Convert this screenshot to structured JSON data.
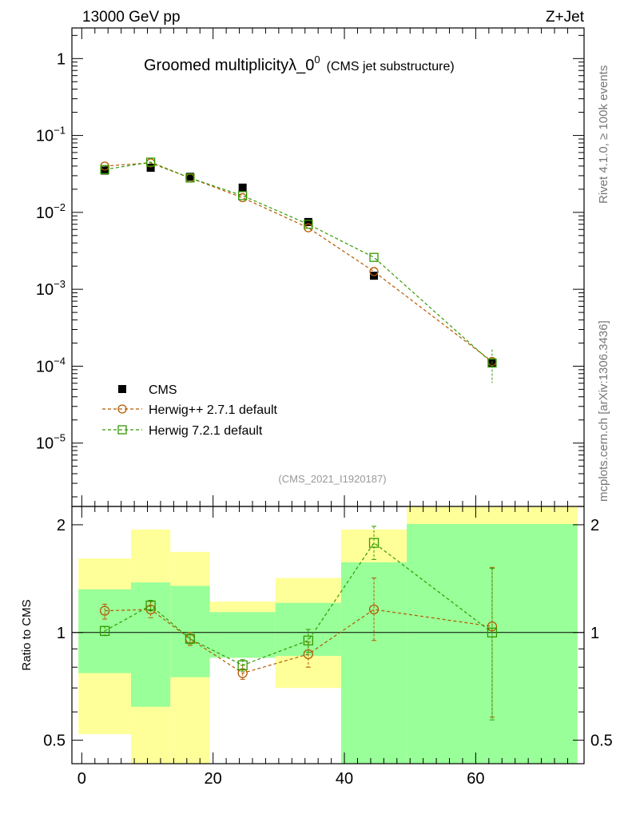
{
  "header": {
    "left": "13000 GeV pp",
    "right": "Z+Jet"
  },
  "title": {
    "main": "Groomed multiplicityλ_0",
    "sup": "0",
    "sub": "(CMS jet substructure)"
  },
  "side_labels": {
    "rivet": "Rivet 4.1.0, ≥ 100k events",
    "mcplots": "mcplots.cern.ch [arXiv:1306.3436]"
  },
  "analysis_id": "(CMS_2021_I1920187)",
  "colors": {
    "data": "#000000",
    "herwigpp": "#b35900",
    "herwig7": "#339900",
    "band_green": "#99ff99",
    "band_yellow": "#ffff99"
  },
  "chart_data": [
    {
      "type": "scatter",
      "yscale": "log",
      "ylim": [
        1.5e-06,
        2.5
      ],
      "xlim": [
        -1.5,
        76.5
      ],
      "yticks": [
        {
          "value": 1,
          "base": "1",
          "exp": ""
        },
        {
          "value": 0.1,
          "base": "10",
          "exp": "−1"
        },
        {
          "value": 0.01,
          "base": "10",
          "exp": "−2"
        },
        {
          "value": 0.001,
          "base": "10",
          "exp": "−3"
        },
        {
          "value": 0.0001,
          "base": "10",
          "exp": "−4"
        },
        {
          "value": 1e-05,
          "base": "10",
          "exp": "−5"
        }
      ],
      "legend_position": "bottom-left",
      "series": [
        {
          "name": "CMS",
          "marker": "filled-square",
          "points": [
            {
              "x": 3.5,
              "y": 0.035
            },
            {
              "x": 10.5,
              "y": 0.038
            },
            {
              "x": 16.5,
              "y": 0.029
            },
            {
              "x": 24.5,
              "y": 0.021
            },
            {
              "x": 34.5,
              "y": 0.0075
            },
            {
              "x": 44.5,
              "y": 0.0015
            },
            {
              "x": 62.5,
              "y": 0.00011
            }
          ]
        },
        {
          "name": "Herwig++ 2.7.1 default",
          "marker": "open-circle",
          "points": [
            {
              "x": 3.5,
              "y": 0.04
            },
            {
              "x": 10.5,
              "y": 0.044
            },
            {
              "x": 16.5,
              "y": 0.028
            },
            {
              "x": 24.5,
              "y": 0.0155
            },
            {
              "x": 34.5,
              "y": 0.0063
            },
            {
              "x": 44.5,
              "y": 0.0017
            },
            {
              "x": 62.5,
              "y": 0.000115
            }
          ]
        },
        {
          "name": "Herwig 7.2.1 default",
          "marker": "open-square",
          "points": [
            {
              "x": 3.5,
              "y": 0.036
            },
            {
              "x": 10.5,
              "y": 0.045
            },
            {
              "x": 16.5,
              "y": 0.028
            },
            {
              "x": 24.5,
              "y": 0.0165
            },
            {
              "x": 34.5,
              "y": 0.007
            },
            {
              "x": 44.5,
              "y": 0.0026
            },
            {
              "x": 62.5,
              "y": 0.00011
            }
          ]
        }
      ]
    },
    {
      "type": "scatter",
      "ylabel": "Ratio to CMS",
      "yscale": "log",
      "ylim": [
        0.43,
        2.25
      ],
      "xlim": [
        -1.5,
        76.5
      ],
      "xticks": [
        0,
        20,
        40,
        60
      ],
      "yticks": [
        {
          "value": 0.5,
          "label": "0.5"
        },
        {
          "value": 1,
          "label": "1"
        },
        {
          "value": 2,
          "label": "2"
        }
      ],
      "bands": [
        {
          "x0": -0.5,
          "x1": 7.5,
          "green": [
            0.77,
            1.32
          ],
          "yellow": [
            0.52,
            1.61
          ]
        },
        {
          "x0": 7.5,
          "x1": 13.5,
          "green": [
            0.62,
            1.38
          ],
          "yellow": [
            0.43,
            1.94
          ]
        },
        {
          "x0": 13.5,
          "x1": 19.5,
          "green": [
            0.75,
            1.35
          ],
          "yellow": [
            0.43,
            1.68
          ]
        },
        {
          "x0": 19.5,
          "x1": 29.5,
          "green": [
            0.85,
            1.14
          ],
          "yellow": [
            0.85,
            1.22
          ]
        },
        {
          "x0": 29.5,
          "x1": 39.5,
          "green": [
            0.86,
            1.21
          ],
          "yellow": [
            0.7,
            1.42
          ]
        },
        {
          "x0": 39.5,
          "x1": 49.5,
          "green": [
            0.43,
            1.57
          ],
          "yellow": [
            0.43,
            1.94
          ]
        },
        {
          "x0": 49.5,
          "x1": 75.5,
          "green": [
            0.43,
            2.01
          ],
          "yellow": [
            0.43,
            2.25
          ]
        }
      ],
      "series": [
        {
          "name": "Herwig++ 2.7.1 default",
          "marker": "open-circle",
          "points": [
            {
              "x": 3.5,
              "y": 1.15,
              "lo": 1.09,
              "hi": 1.2
            },
            {
              "x": 10.5,
              "y": 1.16,
              "lo": 1.1,
              "hi": 1.22
            },
            {
              "x": 16.5,
              "y": 0.96,
              "lo": 0.92,
              "hi": 1.0
            },
            {
              "x": 24.5,
              "y": 0.77,
              "lo": 0.74,
              "hi": 0.81
            },
            {
              "x": 34.5,
              "y": 0.87,
              "lo": 0.8,
              "hi": 0.94
            },
            {
              "x": 44.5,
              "y": 1.16,
              "lo": 0.95,
              "hi": 1.42
            },
            {
              "x": 62.5,
              "y": 1.04,
              "lo": 0.58,
              "hi": 1.52
            }
          ]
        },
        {
          "name": "Herwig 7.2.1 default",
          "marker": "open-square",
          "points": [
            {
              "x": 3.5,
              "y": 1.01,
              "lo": 0.98,
              "hi": 1.04
            },
            {
              "x": 10.5,
              "y": 1.19,
              "lo": 1.15,
              "hi": 1.23
            },
            {
              "x": 16.5,
              "y": 0.96,
              "lo": 0.93,
              "hi": 0.99
            },
            {
              "x": 24.5,
              "y": 0.81,
              "lo": 0.78,
              "hi": 0.84
            },
            {
              "x": 34.5,
              "y": 0.95,
              "lo": 0.88,
              "hi": 1.02
            },
            {
              "x": 44.5,
              "y": 1.78,
              "lo": 1.6,
              "hi": 1.98
            },
            {
              "x": 62.5,
              "y": 1.0,
              "lo": 0.57,
              "hi": 1.51
            }
          ]
        }
      ]
    }
  ]
}
